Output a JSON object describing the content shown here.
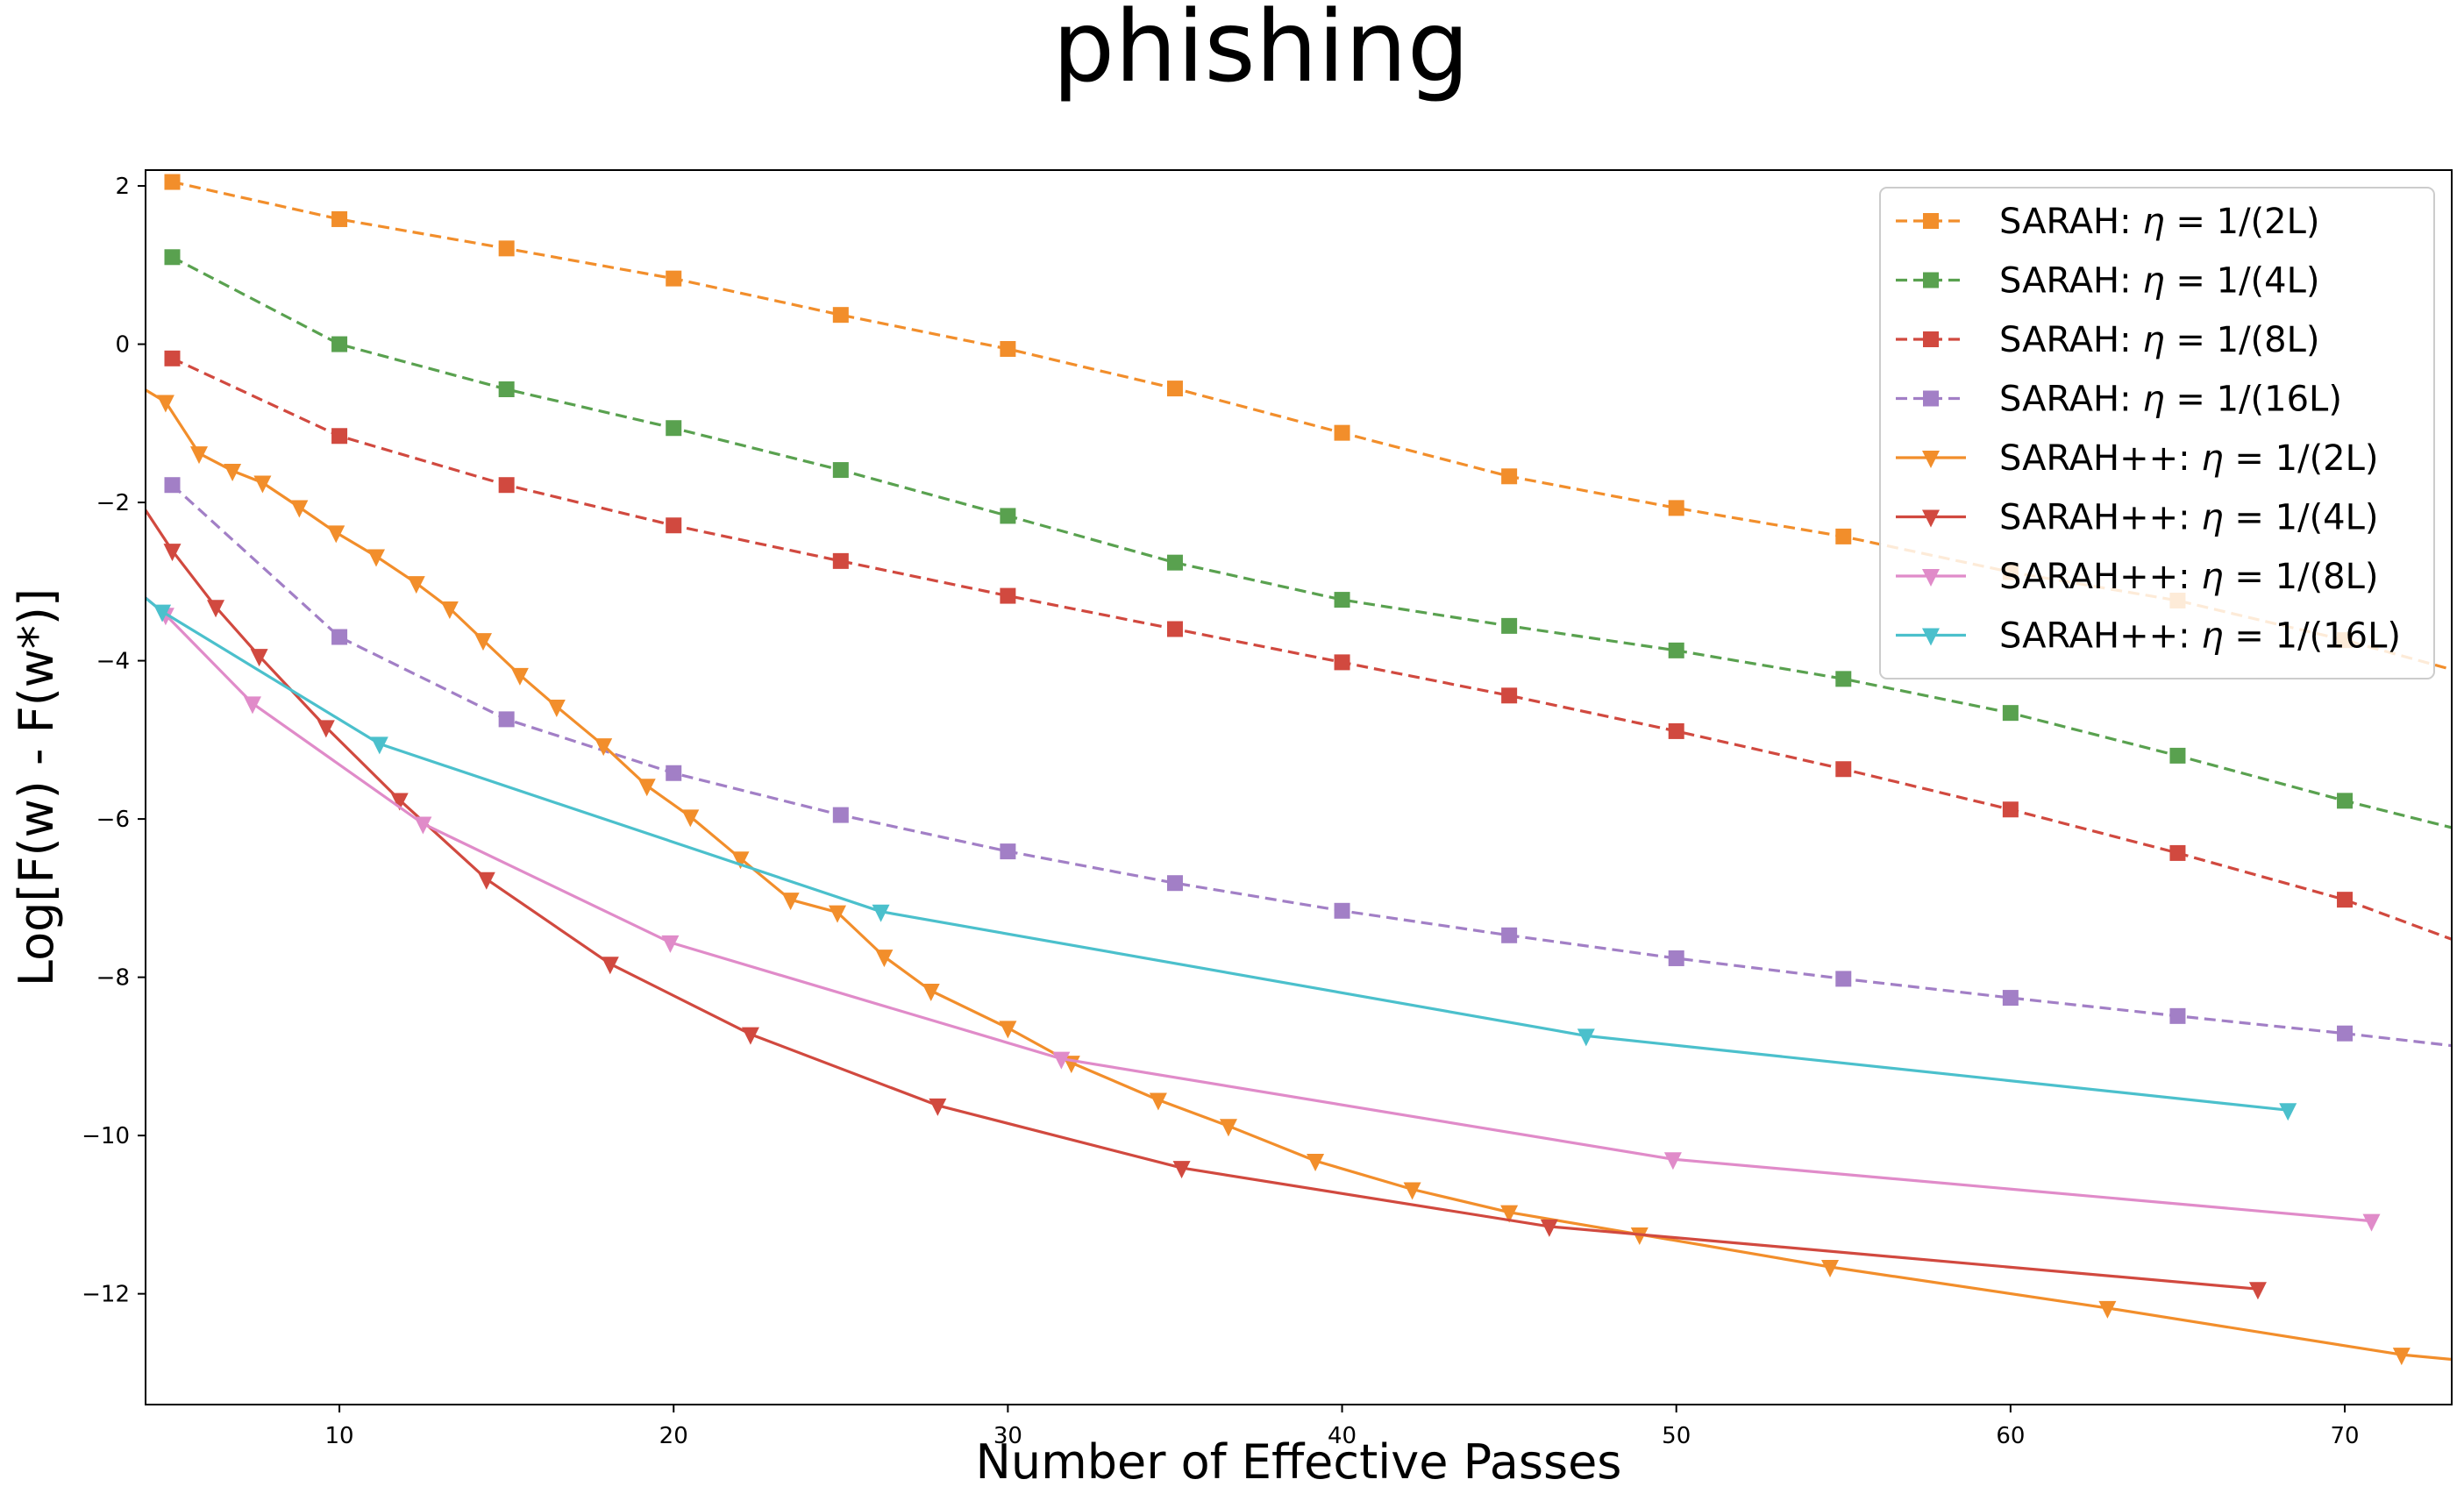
{
  "chart_data": {
    "type": "line",
    "title": "phishing",
    "xlabel": "Number of Effective Passes",
    "ylabel": "Log[F(w) - F(w*)]",
    "xlim": [
      4.2,
      73.2
    ],
    "ylim": [
      -13.4,
      2.2
    ],
    "xticks": [
      10,
      20,
      30,
      40,
      50,
      60,
      70
    ],
    "xtick_labels": [
      "10",
      "20",
      "30",
      "40",
      "50",
      "60",
      "70"
    ],
    "yticks": [
      2,
      0,
      -2,
      -4,
      -6,
      -8,
      -10,
      -12
    ],
    "ytick_labels": [
      "2",
      "0",
      "−2",
      "−4",
      "−6",
      "−8",
      "−10",
      "−12"
    ],
    "grid": false,
    "legend_position": "top-right",
    "series": [
      {
        "name": "SARAH: η = 1/(2L)",
        "legend_prefix": "SARAH: ",
        "legend_suffix": " = 1/(2L)",
        "color": "#f28e2b",
        "line_style": "dashed",
        "marker": "square",
        "x": [
          5,
          10,
          15,
          20,
          25,
          30,
          35,
          40,
          45,
          50,
          55,
          60,
          65,
          70,
          75
        ],
        "y": [
          2.05,
          1.58,
          1.21,
          0.83,
          0.37,
          -0.06,
          -0.56,
          -1.12,
          -1.67,
          -2.07,
          -2.43,
          -2.88,
          -3.24,
          -3.74,
          -4.32
        ]
      },
      {
        "name": "SARAH: η = 1/(4L)",
        "legend_prefix": "SARAH: ",
        "legend_suffix": " = 1/(4L)",
        "color": "#59a14f",
        "line_style": "dashed",
        "marker": "square",
        "x": [
          5,
          10,
          15,
          20,
          25,
          30,
          35,
          40,
          45,
          50,
          55,
          60,
          65,
          70,
          75
        ],
        "y": [
          1.1,
          0.0,
          -0.57,
          -1.06,
          -1.59,
          -2.17,
          -2.76,
          -3.23,
          -3.56,
          -3.87,
          -4.23,
          -4.66,
          -5.2,
          -5.77,
          -6.3
        ]
      },
      {
        "name": "SARAH: η = 1/(8L)",
        "legend_prefix": "SARAH: ",
        "legend_suffix": " = 1/(8L)",
        "color": "#d1493f",
        "line_style": "dashed",
        "marker": "square",
        "x": [
          5,
          10,
          15,
          20,
          25,
          30,
          35,
          40,
          45,
          50,
          55,
          60,
          65,
          70,
          75
        ],
        "y": [
          -0.18,
          -1.16,
          -1.78,
          -2.29,
          -2.74,
          -3.18,
          -3.6,
          -4.02,
          -4.44,
          -4.89,
          -5.37,
          -5.88,
          -6.43,
          -7.02,
          -7.8
        ]
      },
      {
        "name": "SARAH: η = 1/(16L)",
        "legend_prefix": "SARAH: ",
        "legend_suffix": " = 1/(16L)",
        "color": "#a27fc6",
        "line_style": "dashed",
        "marker": "square",
        "x": [
          5,
          10,
          15,
          20,
          25,
          30,
          35,
          40,
          45,
          50,
          55,
          60,
          65,
          70,
          75
        ],
        "y": [
          -1.78,
          -3.7,
          -4.74,
          -5.42,
          -5.95,
          -6.41,
          -6.81,
          -7.16,
          -7.47,
          -7.76,
          -8.02,
          -8.26,
          -8.49,
          -8.71,
          -8.95
        ]
      },
      {
        "name": "SARAH++: η = 1/(2L)",
        "legend_prefix": "SARAH++: ",
        "legend_suffix": " = 1/(2L)",
        "color": "#f28e2b",
        "line_style": "solid",
        "marker": "triangle-down",
        "x": [
          3.5,
          4.8,
          5.8,
          6.8,
          7.7,
          8.8,
          9.9,
          11.1,
          12.3,
          13.3,
          14.3,
          15.4,
          16.5,
          17.9,
          19.2,
          20.5,
          22.0,
          23.5,
          24.9,
          26.3,
          27.7,
          30.0,
          31.9,
          34.5,
          36.6,
          39.2,
          42.1,
          45.0,
          48.9,
          54.6,
          62.9,
          71.7,
          73.5
        ],
        "y": [
          -0.4,
          -0.73,
          -1.38,
          -1.6,
          -1.75,
          -2.06,
          -2.38,
          -2.68,
          -3.02,
          -3.34,
          -3.74,
          -4.18,
          -4.58,
          -5.07,
          -5.58,
          -5.97,
          -6.5,
          -7.02,
          -7.18,
          -7.74,
          -8.17,
          -8.64,
          -9.08,
          -9.55,
          -9.88,
          -10.32,
          -10.68,
          -10.97,
          -11.25,
          -11.66,
          -12.18,
          -12.77,
          -12.84
        ]
      },
      {
        "name": "SARAH++: η = 1/(4L)",
        "legend_prefix": "SARAH++: ",
        "legend_suffix": " = 1/(4L)",
        "color": "#d1493f",
        "line_style": "solid",
        "marker": "triangle-down",
        "x": [
          3.5,
          5.0,
          6.3,
          7.6,
          9.6,
          11.8,
          14.4,
          18.1,
          22.3,
          27.9,
          35.2,
          46.2,
          67.4
        ],
        "y": [
          -1.65,
          -2.61,
          -3.32,
          -3.94,
          -4.84,
          -5.76,
          -6.76,
          -7.83,
          -8.72,
          -9.62,
          -10.41,
          -11.15,
          -11.94
        ]
      },
      {
        "name": "SARAH++: η = 1/(8L)",
        "legend_prefix": "SARAH++: ",
        "legend_suffix": " = 1/(8L)",
        "color": "#e08bc9",
        "line_style": "solid",
        "marker": "triangle-down",
        "x": [
          3.8,
          4.8,
          7.4,
          12.5,
          19.9,
          31.6,
          49.9,
          70.8
        ],
        "y": [
          -3.06,
          -3.42,
          -4.54,
          -6.06,
          -7.56,
          -9.03,
          -10.3,
          -11.08
        ]
      },
      {
        "name": "SARAH++: η = 1/(16L)",
        "legend_prefix": "SARAH++: ",
        "legend_suffix": " = 1/(16L)",
        "color": "#4bc0cc",
        "line_style": "solid",
        "marker": "triangle-down",
        "x": [
          3.8,
          4.7,
          11.2,
          26.2,
          47.3,
          68.3
        ],
        "y": [
          -3.07,
          -3.38,
          -5.05,
          -7.17,
          -8.74,
          -9.68
        ]
      }
    ]
  }
}
